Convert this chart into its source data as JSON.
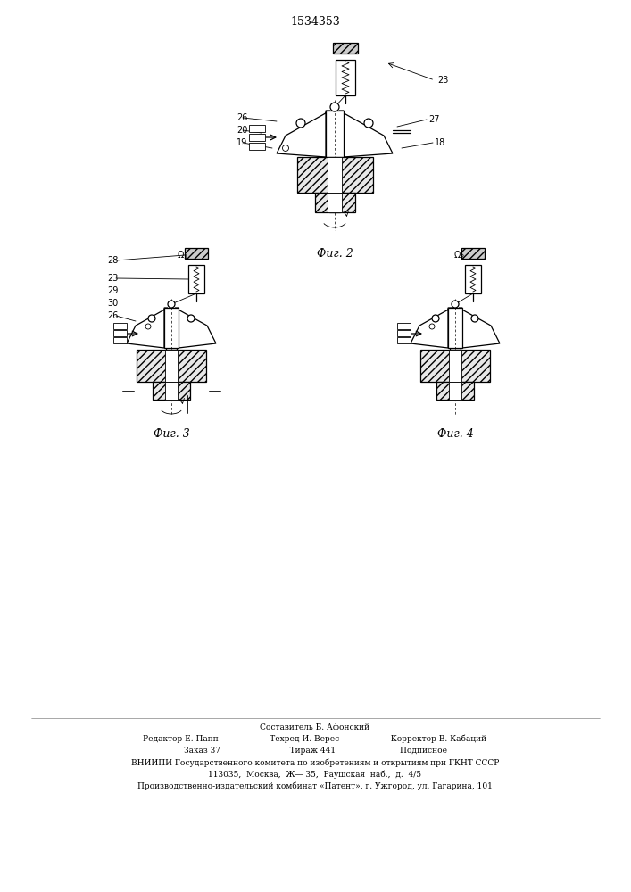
{
  "patent_number": "1534353",
  "background_color": "#ffffff",
  "line_color": "#000000",
  "fig_labels": [
    "Фиг. 2",
    "Фиг. 3",
    "Фиг. 4"
  ],
  "footer_lines": [
    "Составитель Б. Афонский",
    "Редактор Е. Папп                    Техред И. Верес                    Корректор В. Кабаций",
    "Заказ 37                           Тираж 441                         Подписное",
    "ВНИИПИ Государственного комитета по изобретениям и открытиям при ГКНТ СССР",
    "113035,  Москва,  Ж— 35,  Раушская  наб.,  д.  4/5",
    "Производственно-издательский комбинат «Патент», г. Ужгород, ул. Гагарина, 101"
  ]
}
